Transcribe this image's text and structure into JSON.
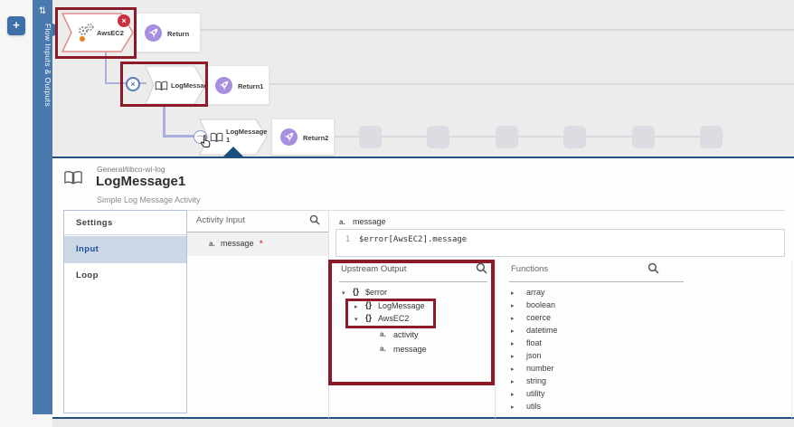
{
  "icons": {
    "add": "+",
    "swap_vertical": "⇅",
    "error_x": "×",
    "suppress_x": "×",
    "more_dots": "•••",
    "tree_expanded": "▾",
    "tree_collapsed": "▸",
    "object_braces": "{}",
    "string_type": "a.",
    "required_asterisk": "*"
  },
  "sidebar": {
    "title": "Flow Inputs & Outputs"
  },
  "canvas": {
    "rows": [
      {
        "activity": {
          "label": "AwsEC2",
          "icon": "gears-icon",
          "has_error_badge": true,
          "highlighted": true
        },
        "return": {
          "label": "Return",
          "icon": "rocket-icon"
        }
      },
      {
        "activity": {
          "label": "LogMessage",
          "icon": "book-icon",
          "has_error_port": true,
          "highlighted": true
        },
        "return": {
          "label": "Return1",
          "icon": "rocket-icon"
        }
      },
      {
        "activity": {
          "label": "LogMessage1",
          "icon": "book-icon",
          "selected": true
        },
        "return": {
          "label": "Return2",
          "icon": "rocket-icon"
        }
      }
    ],
    "placeholder_count": 6
  },
  "panel": {
    "category": "General/tibco-wi-log",
    "title": "LogMessage1",
    "subtitle": "Simple Log Message Activity",
    "tabs": [
      {
        "label": "Settings",
        "selected": false
      },
      {
        "label": "Input",
        "selected": true
      },
      {
        "label": "Loop",
        "selected": false
      }
    ],
    "activity_input": {
      "header": "Activity Input",
      "rows": [
        {
          "type": "a.",
          "name": "message",
          "required": true
        }
      ]
    },
    "mapper": {
      "field_type": "a.",
      "field_name": "message",
      "line_number": "1",
      "expression": "$error[AwsEC2].message"
    },
    "upstream_output": {
      "header": "Upstream Output",
      "tree": [
        {
          "label": "$error",
          "depth": 0,
          "state": "expanded",
          "kind": "object"
        },
        {
          "label": "LogMessage",
          "depth": 1,
          "state": "collapsed",
          "kind": "object",
          "highlighted": true
        },
        {
          "label": "AwsEC2",
          "depth": 1,
          "state": "expanded",
          "kind": "object",
          "highlighted": true
        },
        {
          "label": "activity",
          "depth": 2,
          "kind": "string"
        },
        {
          "label": "message",
          "depth": 2,
          "kind": "string"
        }
      ]
    },
    "functions": {
      "header": "Functions",
      "items": [
        "array",
        "boolean",
        "coerce",
        "datetime",
        "float",
        "json",
        "number",
        "string",
        "utility",
        "utils"
      ]
    }
  },
  "colors": {
    "highlight_box": "#8c1a28",
    "sidebar_blue": "#4a79ae",
    "accent_navy": "#24507e",
    "selected_tab_bg": "#ccd7e5",
    "selected_tab_text": "#1d4f9e",
    "error_red": "#c8313d",
    "node_purple": "#a78fe0",
    "connector_lavender": "#abafdd"
  }
}
